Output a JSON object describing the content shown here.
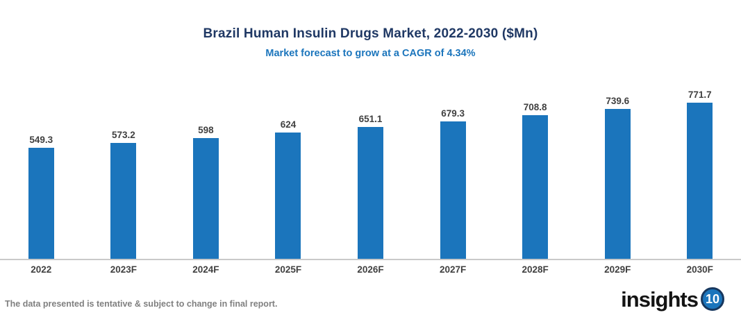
{
  "header": {
    "title": "Brazil Human Insulin Drugs Market, 2022-2030 ($Mn)",
    "subtitle": "Market forecast to grow at a CAGR of 4.34%"
  },
  "chart_data": {
    "type": "bar",
    "title": "Brazil Human Insulin Drugs Market, 2022-2030 ($Mn)",
    "subtitle": "Market forecast to grow at a CAGR of 4.34%",
    "categories": [
      "2022",
      "2023F",
      "2024F",
      "2025F",
      "2026F",
      "2027F",
      "2028F",
      "2029F",
      "2030F"
    ],
    "values": [
      549.3,
      573.2,
      598,
      624,
      651.1,
      679.3,
      708.8,
      739.6,
      771.7
    ],
    "xlabel": "",
    "ylabel": "",
    "ylim": [
      0,
      800
    ],
    "grid": false,
    "legend": false,
    "bar_color": "#1B75BC",
    "value_label_color": "#404040",
    "axis_line_color": "#C9C9C9"
  },
  "footer": {
    "disclaimer": "The data presented is tentative & subject to change in final report.",
    "logo": {
      "text": "insights",
      "badge": "10"
    }
  },
  "colors": {
    "title": "#1F3864",
    "subtitle": "#1B75BC",
    "bar": "#1B75BC",
    "labels": "#404040",
    "axis": "#C9C9C9",
    "disclaimer": "#808080",
    "badge_ring": "#17375E"
  }
}
